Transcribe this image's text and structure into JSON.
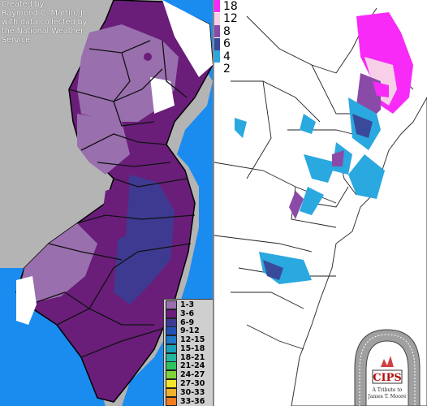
{
  "left_map": {
    "credit": "Created by\nRaymond C. Martin, Jr.\nwith data collected by\nthe National Weather\nService",
    "legend": [
      {
        "label": "1-3",
        "color": "#9a6fae"
      },
      {
        "label": "3-6",
        "color": "#6a1e7a"
      },
      {
        "label": "6-9",
        "color": "#3e3a92"
      },
      {
        "label": "9-12",
        "color": "#2350b5"
      },
      {
        "label": "12-15",
        "color": "#1f78c8"
      },
      {
        "label": "15-18",
        "color": "#1aa0b8"
      },
      {
        "label": "18-21",
        "color": "#27b5a0"
      },
      {
        "label": "21-24",
        "color": "#2fc35d"
      },
      {
        "label": "24-27",
        "color": "#7ed33a"
      },
      {
        "label": "27-30",
        "color": "#f3e62a"
      },
      {
        "label": "30-33",
        "color": "#f0b22a"
      },
      {
        "label": "33-36",
        "color": "#f07d1f"
      }
    ],
    "colors": {
      "ocean": "#1a8cf0",
      "land_bg": "#b4b4b4",
      "white_zone": "#ffffff"
    }
  },
  "right_map": {
    "legend": [
      {
        "label": "18",
        "color": "#f72af7"
      },
      {
        "label": "12",
        "color": "#f7d0e8"
      },
      {
        "label": "8",
        "color": "#8a4aa8"
      },
      {
        "label": "6",
        "color": "#3a4a9a"
      },
      {
        "label": "4",
        "color": "#2aa8e0"
      },
      {
        "label": "2",
        "color": "#ffffff"
      }
    ]
  },
  "logo": {
    "name": "CIPS",
    "arc_text": "Cooperative Institute for Precipitation Systems",
    "tribute": "A Tribute to James T. Moore"
  }
}
